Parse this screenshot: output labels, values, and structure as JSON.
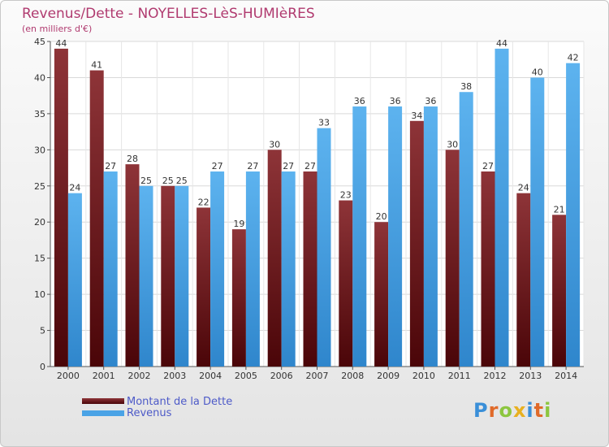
{
  "chart": {
    "title": "Revenus/Dette - NOYELLES-LèS-HUMIèRES",
    "subtitle": "(en milliers d'€)"
  },
  "chart_data": {
    "type": "bar",
    "categories": [
      "2000",
      "2001",
      "2002",
      "2003",
      "2004",
      "2005",
      "2006",
      "2007",
      "2008",
      "2009",
      "2010",
      "2011",
      "2012",
      "2013",
      "2014"
    ],
    "series": [
      {
        "name": "Montant de la Dette",
        "values": [
          44,
          41,
          28,
          25,
          22,
          19,
          30,
          27,
          23,
          20,
          34,
          30,
          27,
          24,
          21
        ],
        "color": "#7a1e24"
      },
      {
        "name": "Revenus",
        "values": [
          24,
          27,
          25,
          25,
          27,
          27,
          27,
          33,
          36,
          36,
          36,
          38,
          44,
          40,
          42
        ],
        "color": "#4aa3e6"
      }
    ],
    "ylim": [
      0,
      45
    ],
    "yticks": [
      0,
      5,
      10,
      15,
      20,
      25,
      30,
      35,
      40,
      45
    ],
    "grid": true,
    "legend": "bottom-left"
  },
  "logo": {
    "text": "Proxiti",
    "colors": [
      "#3a8fd8",
      "#e06a2a",
      "#8cc63f",
      "#e8b020",
      "#3a8fd8",
      "#e06a2a",
      "#8cc63f"
    ]
  }
}
